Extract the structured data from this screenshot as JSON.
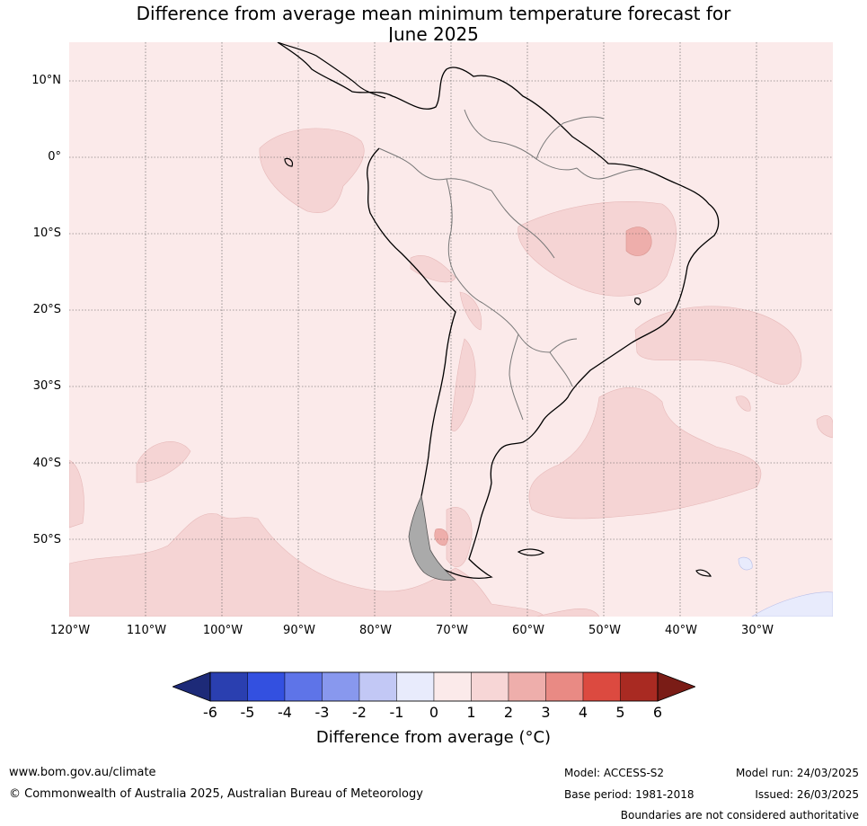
{
  "title_line1": "Difference from average mean minimum temperature forecast for",
  "title_line2": "June 2025",
  "lat_labels": [
    "10°N",
    "0°",
    "10°S",
    "20°S",
    "30°S",
    "40°S",
    "50°S"
  ],
  "lon_labels": [
    "120°W",
    "110°W",
    "100°W",
    "90°W",
    "80°W",
    "70°W",
    "60°W",
    "50°W",
    "40°W",
    "30°W"
  ],
  "colorbar": {
    "ticks": [
      "-6",
      "-5",
      "-4",
      "-3",
      "-2",
      "-1",
      "0",
      "1",
      "2",
      "3",
      "4",
      "5",
      "6"
    ],
    "colors": [
      "#2a3fb0",
      "#3350e0",
      "#5e74e8",
      "#8898ee",
      "#c2c8f5",
      "#e8ebfc",
      "#fbeaea",
      "#f7d6d6",
      "#eeaeab",
      "#e98a84",
      "#dc4a40",
      "#a92a22"
    ],
    "under_color": "#1d2a78",
    "over_color": "#7a1c16",
    "label": "Difference from average ($^\\circ$C)",
    "label_display": "Difference from average (°C)"
  },
  "map_colors": {
    "background": "#fbeaea",
    "anomaly_1_2": "#f5d4d4",
    "anomaly_2_3": "#eeaeab",
    "anomaly_neg": "#e8ebfc"
  },
  "footer": {
    "website": "www.bom.gov.au/climate",
    "copyright": "© Commonwealth of Australia 2025, Australian Bureau of Meteorology",
    "model": "Model: ACCESS-S2",
    "base_period": "Base period: 1981-2018",
    "model_run": "Model run: 24/03/2025",
    "issued": "Issued: 26/03/2025",
    "disclaimer": "Boundaries are not considered authoritative"
  }
}
